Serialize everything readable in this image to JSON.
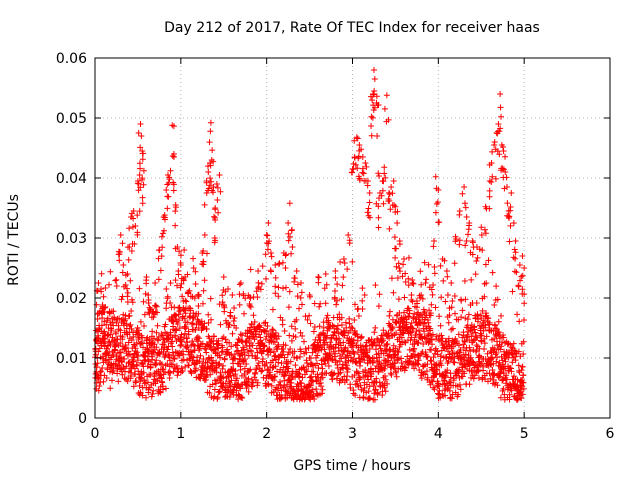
{
  "chart_data": {
    "type": "scatter",
    "title": "Day 212 of 2017, Rate Of TEC Index for receiver haas",
    "xlabel": "GPS time / hours",
    "ylabel": "ROTI / TECUs",
    "xlim": [
      0,
      6
    ],
    "ylim": [
      0,
      0.06
    ],
    "xticks": [
      0,
      1,
      2,
      3,
      4,
      5,
      6
    ],
    "yticks": [
      0,
      0.01,
      0.02,
      0.03,
      0.04,
      0.05,
      0.06
    ],
    "xtick_labels": [
      "0",
      "1",
      "2",
      "3",
      "4",
      "5",
      "6"
    ],
    "ytick_labels": [
      "0",
      "0.01",
      "0.02",
      "0.03",
      "0.04",
      "0.05",
      "0.06"
    ],
    "grid": true,
    "marker": "+",
    "series_color": "#ff0000",
    "series": [
      {
        "name": "ROTI",
        "points": [
          [
            0.02,
            0.0085
          ],
          [
            0.03,
            0.0165
          ],
          [
            0.04,
            0.0225
          ],
          [
            0.05,
            0.0175
          ],
          [
            0.07,
            0.0215
          ],
          [
            0.1,
            0.0202
          ],
          [
            0.12,
            0.0185
          ],
          [
            0.15,
            0.012
          ],
          [
            0.2,
            0.0105
          ],
          [
            0.25,
            0.0098
          ],
          [
            0.3,
            0.0305
          ],
          [
            0.33,
            0.0255
          ],
          [
            0.36,
            0.0238
          ],
          [
            0.4,
            0.0285
          ],
          [
            0.42,
            0.0335
          ],
          [
            0.45,
            0.0345
          ],
          [
            0.47,
            0.032
          ],
          [
            0.5,
            0.0395
          ],
          [
            0.52,
            0.0405
          ],
          [
            0.53,
            0.049
          ],
          [
            0.54,
            0.047
          ],
          [
            0.55,
            0.0445
          ],
          [
            0.57,
            0.0412
          ],
          [
            0.6,
            0.0235
          ],
          [
            0.62,
            0.0205
          ],
          [
            0.65,
            0.018
          ],
          [
            0.7,
            0.0225
          ],
          [
            0.75,
            0.028
          ],
          [
            0.78,
            0.0302
          ],
          [
            0.8,
            0.0335
          ],
          [
            0.83,
            0.038
          ],
          [
            0.85,
            0.0405
          ],
          [
            0.88,
            0.0412
          ],
          [
            0.9,
            0.0488
          ],
          [
            0.92,
            0.0435
          ],
          [
            0.94,
            0.0355
          ],
          [
            0.96,
            0.0285
          ],
          [
            0.98,
            0.0278
          ],
          [
            1.0,
            0.0255
          ],
          [
            1.05,
            0.0235
          ],
          [
            1.1,
            0.0212
          ],
          [
            1.15,
            0.025
          ],
          [
            1.2,
            0.0205
          ],
          [
            1.25,
            0.0275
          ],
          [
            1.28,
            0.0305
          ],
          [
            1.3,
            0.0395
          ],
          [
            1.32,
            0.041
          ],
          [
            1.34,
            0.0425
          ],
          [
            1.35,
            0.0492
          ],
          [
            1.36,
            0.043
          ],
          [
            1.38,
            0.0385
          ],
          [
            1.4,
            0.035
          ],
          [
            1.42,
            0.039
          ],
          [
            1.45,
            0.0405
          ],
          [
            1.5,
            0.0235
          ],
          [
            1.55,
            0.0215
          ],
          [
            1.6,
            0.0205
          ],
          [
            1.7,
            0.0225
          ],
          [
            1.8,
            0.019
          ],
          [
            1.9,
            0.0245
          ],
          [
            2.0,
            0.0305
          ],
          [
            2.02,
            0.0325
          ],
          [
            2.05,
            0.0275
          ],
          [
            2.1,
            0.0255
          ],
          [
            2.15,
            0.0258
          ],
          [
            2.2,
            0.0275
          ],
          [
            2.25,
            0.0325
          ],
          [
            2.27,
            0.0358
          ],
          [
            2.3,
            0.0285
          ],
          [
            2.35,
            0.0245
          ],
          [
            2.4,
            0.0225
          ],
          [
            2.5,
            0.0205
          ],
          [
            2.6,
            0.0235
          ],
          [
            2.7,
            0.0222
          ],
          [
            2.8,
            0.0245
          ],
          [
            2.9,
            0.0265
          ],
          [
            2.95,
            0.0305
          ],
          [
            3.0,
            0.0415
          ],
          [
            3.02,
            0.0462
          ],
          [
            3.05,
            0.0468
          ],
          [
            3.08,
            0.0455
          ],
          [
            3.1,
            0.0448
          ],
          [
            3.12,
            0.0435
          ],
          [
            3.15,
            0.0425
          ],
          [
            3.18,
            0.0395
          ],
          [
            3.2,
            0.0375
          ],
          [
            3.22,
            0.0502
          ],
          [
            3.24,
            0.054
          ],
          [
            3.25,
            0.058
          ],
          [
            3.26,
            0.0565
          ],
          [
            3.28,
            0.0525
          ],
          [
            3.3,
            0.0408
          ],
          [
            3.32,
            0.0375
          ],
          [
            3.35,
            0.0395
          ],
          [
            3.37,
            0.0418
          ],
          [
            3.4,
            0.0538
          ],
          [
            3.42,
            0.0365
          ],
          [
            3.45,
            0.0385
          ],
          [
            3.48,
            0.0395
          ],
          [
            3.5,
            0.0352
          ],
          [
            3.52,
            0.0325
          ],
          [
            3.55,
            0.0295
          ],
          [
            3.6,
            0.0265
          ],
          [
            3.65,
            0.0232
          ],
          [
            3.7,
            0.0225
          ],
          [
            3.75,
            0.0195
          ],
          [
            3.8,
            0.0205
          ],
          [
            3.85,
            0.0225
          ],
          [
            3.9,
            0.0218
          ],
          [
            3.95,
            0.0295
          ],
          [
            3.97,
            0.0402
          ],
          [
            4.0,
            0.038
          ],
          [
            4.05,
            0.0265
          ],
          [
            4.1,
            0.0245
          ],
          [
            4.15,
            0.0225
          ],
          [
            4.2,
            0.0302
          ],
          [
            4.25,
            0.0345
          ],
          [
            4.3,
            0.0385
          ],
          [
            4.33,
            0.0335
          ],
          [
            4.36,
            0.0325
          ],
          [
            4.4,
            0.0295
          ],
          [
            4.45,
            0.0285
          ],
          [
            4.5,
            0.0318
          ],
          [
            4.55,
            0.0352
          ],
          [
            4.6,
            0.0395
          ],
          [
            4.62,
            0.0425
          ],
          [
            4.65,
            0.0455
          ],
          [
            4.68,
            0.0475
          ],
          [
            4.7,
            0.049
          ],
          [
            4.72,
            0.054
          ],
          [
            4.74,
            0.0455
          ],
          [
            4.76,
            0.0445
          ],
          [
            4.78,
            0.041
          ],
          [
            4.8,
            0.0385
          ],
          [
            4.82,
            0.0345
          ],
          [
            4.85,
            0.0375
          ],
          [
            4.88,
            0.0325
          ],
          [
            4.9,
            0.0295
          ],
          [
            4.95,
            0.0255
          ],
          [
            4.98,
            0.027
          ],
          [
            5.0,
            0.025
          ]
        ]
      }
    ]
  }
}
